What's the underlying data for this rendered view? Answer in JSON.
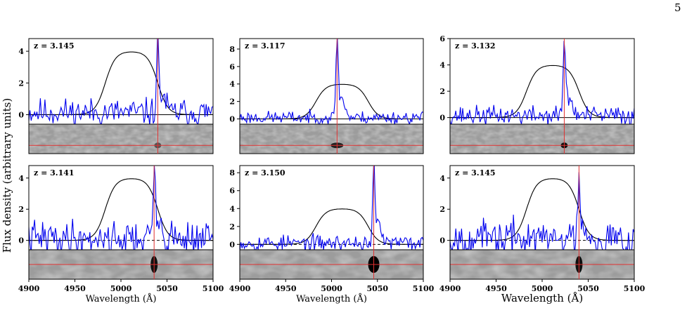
{
  "page_number": "5",
  "figure": {
    "ylabel": "Flux density (arbitrary units)",
    "xlabel": "Wavelength (Å)",
    "colors": {
      "spectrum": "#0000ee",
      "filter": "#000000",
      "marker": "#e03030",
      "zero_line": "#000000"
    }
  },
  "chart_data": [
    {
      "type": "line",
      "label": "z = 3.145",
      "ylim": [
        -0.6,
        4.8
      ],
      "yticks": [
        0,
        2,
        4
      ],
      "xlim": [
        4900,
        5100
      ],
      "xticks": [],
      "line_wavelength": 5040,
      "peak": 4.3,
      "filter_top": 4.0,
      "zero_style": "solid",
      "noise_seed": 11,
      "noise_amp": 0.55,
      "blob_x": 5040,
      "blob_strength": 0.5
    },
    {
      "type": "line",
      "label": "z = 3.117",
      "ylim": [
        -0.6,
        9.2
      ],
      "yticks": [
        0,
        2,
        4,
        6,
        8
      ],
      "xlim": [
        4900,
        5100
      ],
      "xticks": [],
      "line_wavelength": 5006,
      "peak": 9.0,
      "filter_top": 4.0,
      "zero_style": "solid",
      "noise_seed": 23,
      "noise_amp": 0.45,
      "blob_x": 5006,
      "blob_strength": 0.8
    },
    {
      "type": "line",
      "label": "z = 3.132",
      "ylim": [
        -0.5,
        6.0
      ],
      "yticks": [
        0,
        2,
        4,
        6
      ],
      "xlim": [
        4900,
        5100
      ],
      "xticks": [],
      "line_wavelength": 5024,
      "peak": 5.6,
      "filter_top": 4.0,
      "zero_style": "solid",
      "noise_seed": 37,
      "noise_amp": 0.45,
      "blob_x": 5024,
      "blob_strength": 0.9
    },
    {
      "type": "line",
      "label": "z = 3.141",
      "ylim": [
        -0.6,
        4.8
      ],
      "yticks": [
        0,
        2,
        4
      ],
      "xlim": [
        4900,
        5100
      ],
      "xticks": [
        4900,
        4950,
        5000,
        5050,
        5100
      ],
      "line_wavelength": 5036,
      "peak": 4.1,
      "filter_top": 4.0,
      "zero_style": "dashed",
      "noise_seed": 41,
      "noise_amp": 0.7,
      "blob_x": 5036,
      "blob_strength": 0.9
    },
    {
      "type": "line",
      "label": "z = 3.150",
      "ylim": [
        -0.6,
        8.8
      ],
      "yticks": [
        0,
        2,
        4,
        6,
        8
      ],
      "xlim": [
        4900,
        5100
      ],
      "xticks": [
        4900,
        4950,
        5000,
        5050,
        5100
      ],
      "line_wavelength": 5046,
      "peak": 8.2,
      "filter_top": 4.0,
      "zero_style": "dashed",
      "noise_seed": 53,
      "noise_amp": 0.55,
      "blob_x": 5046,
      "blob_strength": 1.0
    },
    {
      "type": "line",
      "label": "z = 3.145",
      "ylim": [
        -0.6,
        4.8
      ],
      "yticks": [
        0,
        2,
        4
      ],
      "xlim": [
        4900,
        5100
      ],
      "xticks": [
        4900,
        4950,
        5000,
        5050,
        5100
      ],
      "line_wavelength": 5040,
      "peak": 3.9,
      "filter_top": 4.0,
      "zero_style": "dashed",
      "noise_seed": 67,
      "noise_amp": 0.7,
      "blob_x": 5040,
      "blob_strength": 0.9
    }
  ]
}
